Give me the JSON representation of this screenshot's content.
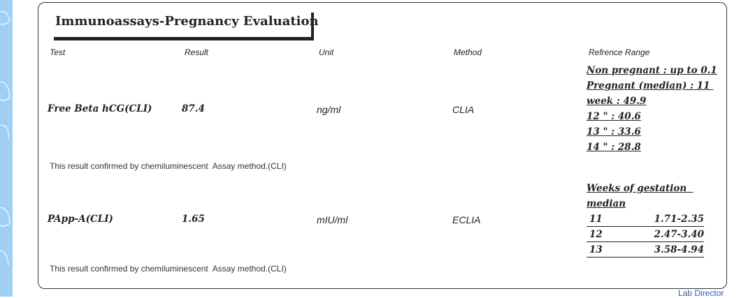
{
  "section": {
    "title": "Immunoassays-Pregnancy Evaluation"
  },
  "columns": {
    "test": "Test",
    "result": "Result",
    "unit": "Unit",
    "method": "Method",
    "reference": "Refrence Range"
  },
  "rows": [
    {
      "test": "Free Beta hCG(CLI)",
      "result": "87.4",
      "unit": "ng/ml",
      "method": "CLIA",
      "reference_lines": [
        "Non pregnant : up to 0.1",
        "Pregnant (median) : 11 ",
        "week : 49.9",
        "12 \" : 40.6",
        "13 \" : 33.6",
        "14 \" : 28.8"
      ],
      "note": "This result confirmed by chemiluminescent  Assay method.(CLI)"
    },
    {
      "test": "PApp-A(CLI)",
      "result": "1.65",
      "unit": "mIU/ml",
      "method": "ECLIA",
      "reference_heading": [
        "Weeks of gestation  ",
        "median"
      ],
      "reference_table": [
        {
          "week": "11",
          "range": "1.71-2.35"
        },
        {
          "week": "12",
          "range": "2.47-3.40"
        },
        {
          "week": "13",
          "range": "3.58-4.94"
        }
      ],
      "note": "This result confirmed by chemiluminescent  Assay method.(CLI)"
    }
  ],
  "footer": {
    "signature_label": "Lab Director"
  }
}
